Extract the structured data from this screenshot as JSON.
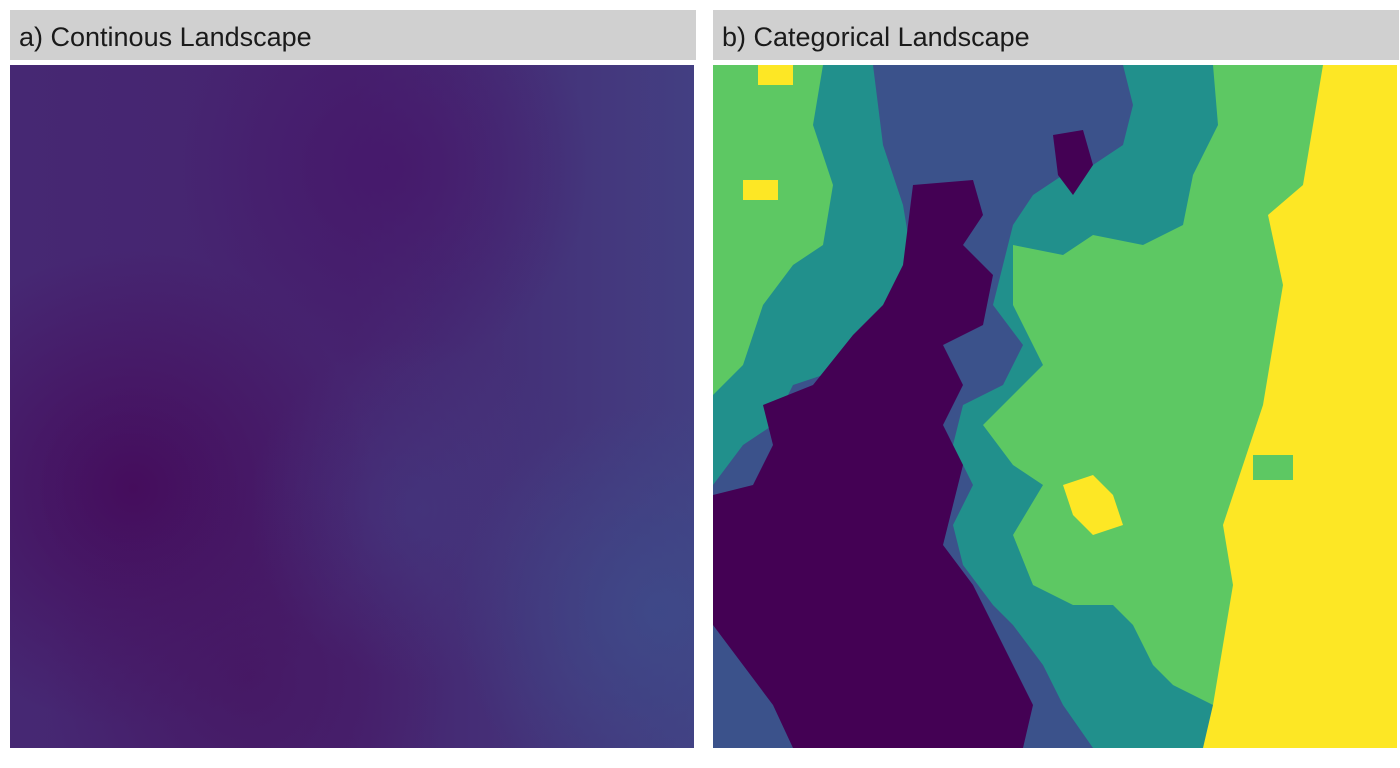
{
  "panels": [
    {
      "id": "a",
      "title": "a) Continous Landscape"
    },
    {
      "id": "b",
      "title": "b) Categorical Landscape"
    }
  ],
  "chart_data": [
    {
      "type": "heatmap",
      "title": "a) Continous Landscape",
      "xlabel": "",
      "ylabel": "",
      "grid": false,
      "legend": "none",
      "colormap": "viridis",
      "colors": {
        "low": "#440154",
        "mid_low": "#46266e",
        "mid": "#433c80"
      }
    },
    {
      "type": "heatmap",
      "title": "b) Categorical Landscape",
      "xlabel": "",
      "ylabel": "",
      "grid": false,
      "legend": "none",
      "class_count": 5,
      "class_colors": [
        "#440154",
        "#3b528b",
        "#21908c",
        "#5dc863",
        "#fde725"
      ]
    }
  ]
}
